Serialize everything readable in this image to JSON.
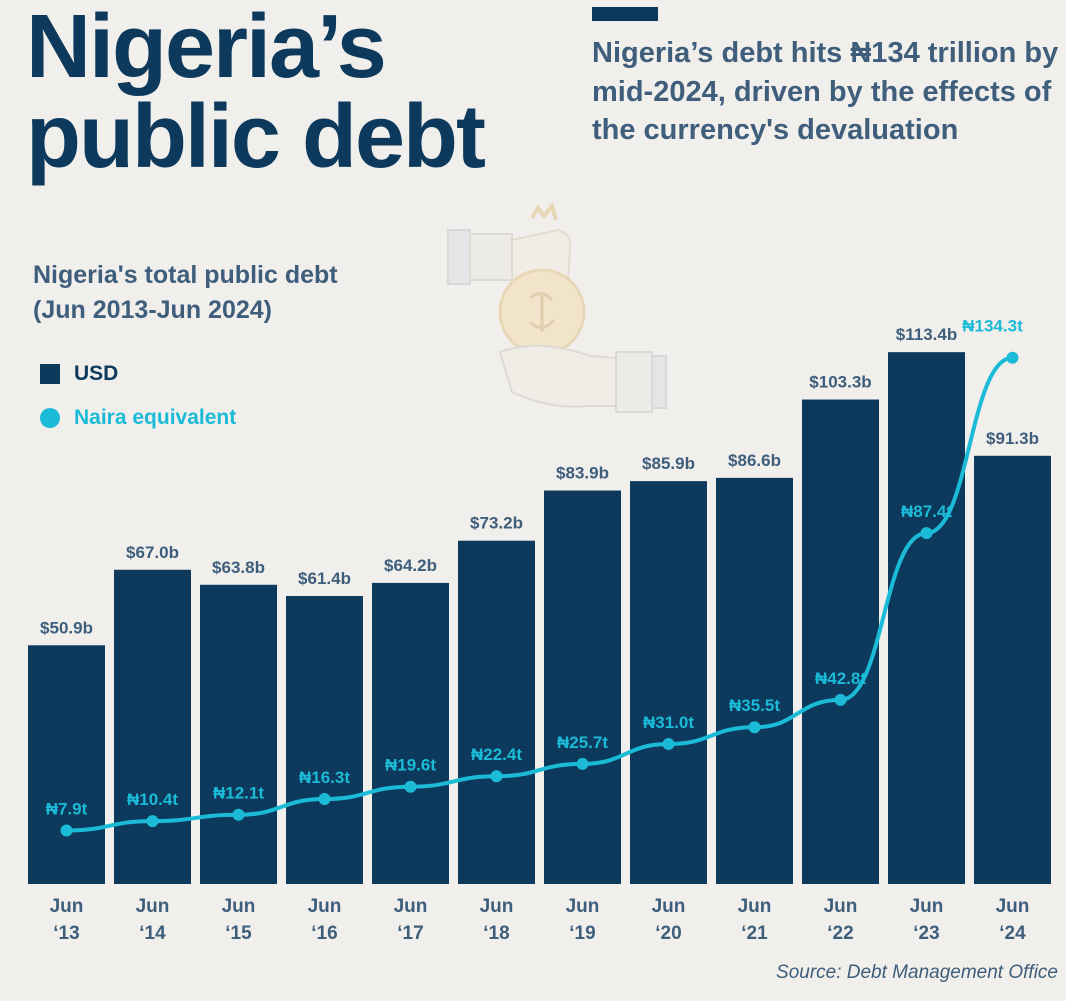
{
  "header": {
    "title_line1": "Nigeria’s",
    "title_line2": "public debt",
    "subtitle": "Nigeria’s debt hits ₦134 trillion by mid-2024, driven by the effects of the currency's devaluation"
  },
  "chart_header": {
    "title_line1": "Nigeria's total public debt",
    "title_line2": "(Jun 2013-Jun 2024)"
  },
  "legend": {
    "usd_label": "USD",
    "naira_label": "Naira equivalent"
  },
  "decor": {
    "icon": "hand-money-bag-icon"
  },
  "source": "Source: Debt Management Office",
  "colors": {
    "background": "#f1efec",
    "bar": "#0d3a5c",
    "line": "#1bbbd8",
    "text": "#3e5e7c"
  },
  "chart_data": {
    "type": "bar",
    "title": "Nigeria's total public debt (Jun 2013-Jun 2024)",
    "categories": [
      "Jun '13",
      "Jun '14",
      "Jun '15",
      "Jun '16",
      "Jun '17",
      "Jun '18",
      "Jun '19",
      "Jun '20",
      "Jun '21",
      "Jun '22",
      "Jun '23",
      "Jun '24"
    ],
    "category_lines": [
      [
        "Jun",
        "‘13"
      ],
      [
        "Jun",
        "‘14"
      ],
      [
        "Jun",
        "‘15"
      ],
      [
        "Jun",
        "‘16"
      ],
      [
        "Jun",
        "‘17"
      ],
      [
        "Jun",
        "‘18"
      ],
      [
        "Jun",
        "‘19"
      ],
      [
        "Jun",
        "‘20"
      ],
      [
        "Jun",
        "‘21"
      ],
      [
        "Jun",
        "‘22"
      ],
      [
        "Jun",
        "‘23"
      ],
      [
        "Jun",
        "‘24"
      ]
    ],
    "series": [
      {
        "name": "USD",
        "type": "bar",
        "unit": "billion USD",
        "values": [
          50.9,
          67.0,
          63.8,
          61.4,
          64.2,
          73.2,
          83.9,
          85.9,
          86.6,
          103.3,
          113.4,
          91.3
        ],
        "labels": [
          "$50.9b",
          "$67.0b",
          "$63.8b",
          "$61.4b",
          "$64.2b",
          "$73.2b",
          "$83.9b",
          "$85.9b",
          "$86.6b",
          "$103.3b",
          "$113.4b",
          "$91.3b"
        ]
      },
      {
        "name": "Naira equivalent",
        "type": "line",
        "unit": "trillion NGN",
        "values": [
          7.9,
          10.4,
          12.1,
          16.3,
          19.6,
          22.4,
          25.7,
          31.0,
          35.5,
          42.8,
          87.4,
          134.3
        ],
        "labels": [
          "₦7.9t",
          "₦10.4t",
          "₦12.1t",
          "₦16.3t",
          "₦19.6t",
          "₦22.4t",
          "₦25.7t",
          "₦31.0t",
          "₦35.5t",
          "₦42.8t",
          "₦87.4t",
          "₦134.3t"
        ]
      }
    ],
    "ylim_usd": [
      0,
      115
    ],
    "ylim_naira": [
      0,
      145
    ],
    "grid": false,
    "legend_position": "top-left"
  }
}
